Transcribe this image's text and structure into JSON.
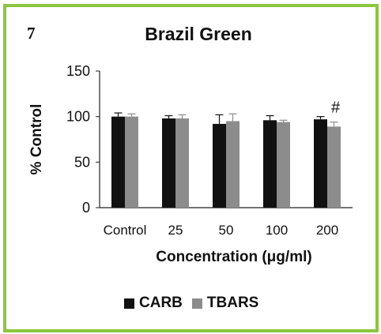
{
  "panel_label": "7",
  "chart_data": {
    "type": "bar",
    "title": "Brazil Green",
    "xlabel": "Concentration (μg/ml)",
    "ylabel": "% Control",
    "categories": [
      "Control",
      "25",
      "50",
      "100",
      "200"
    ],
    "ylim": [
      0,
      150
    ],
    "yticks": [
      0,
      50,
      100,
      150
    ],
    "grid": false,
    "legend_position": "bottom",
    "series": [
      {
        "name": "CARB",
        "color": "#111111",
        "values": [
          100,
          98,
          92,
          96,
          97
        ],
        "errors": [
          4,
          3,
          10,
          5,
          3
        ]
      },
      {
        "name": "TBARS",
        "color": "#8c8c8c",
        "values": [
          100,
          98,
          95,
          94,
          89
        ],
        "errors": [
          3,
          4,
          8,
          2,
          5
        ]
      }
    ],
    "annotations": [
      {
        "category": "200",
        "series": "TBARS",
        "text": "#"
      }
    ]
  }
}
